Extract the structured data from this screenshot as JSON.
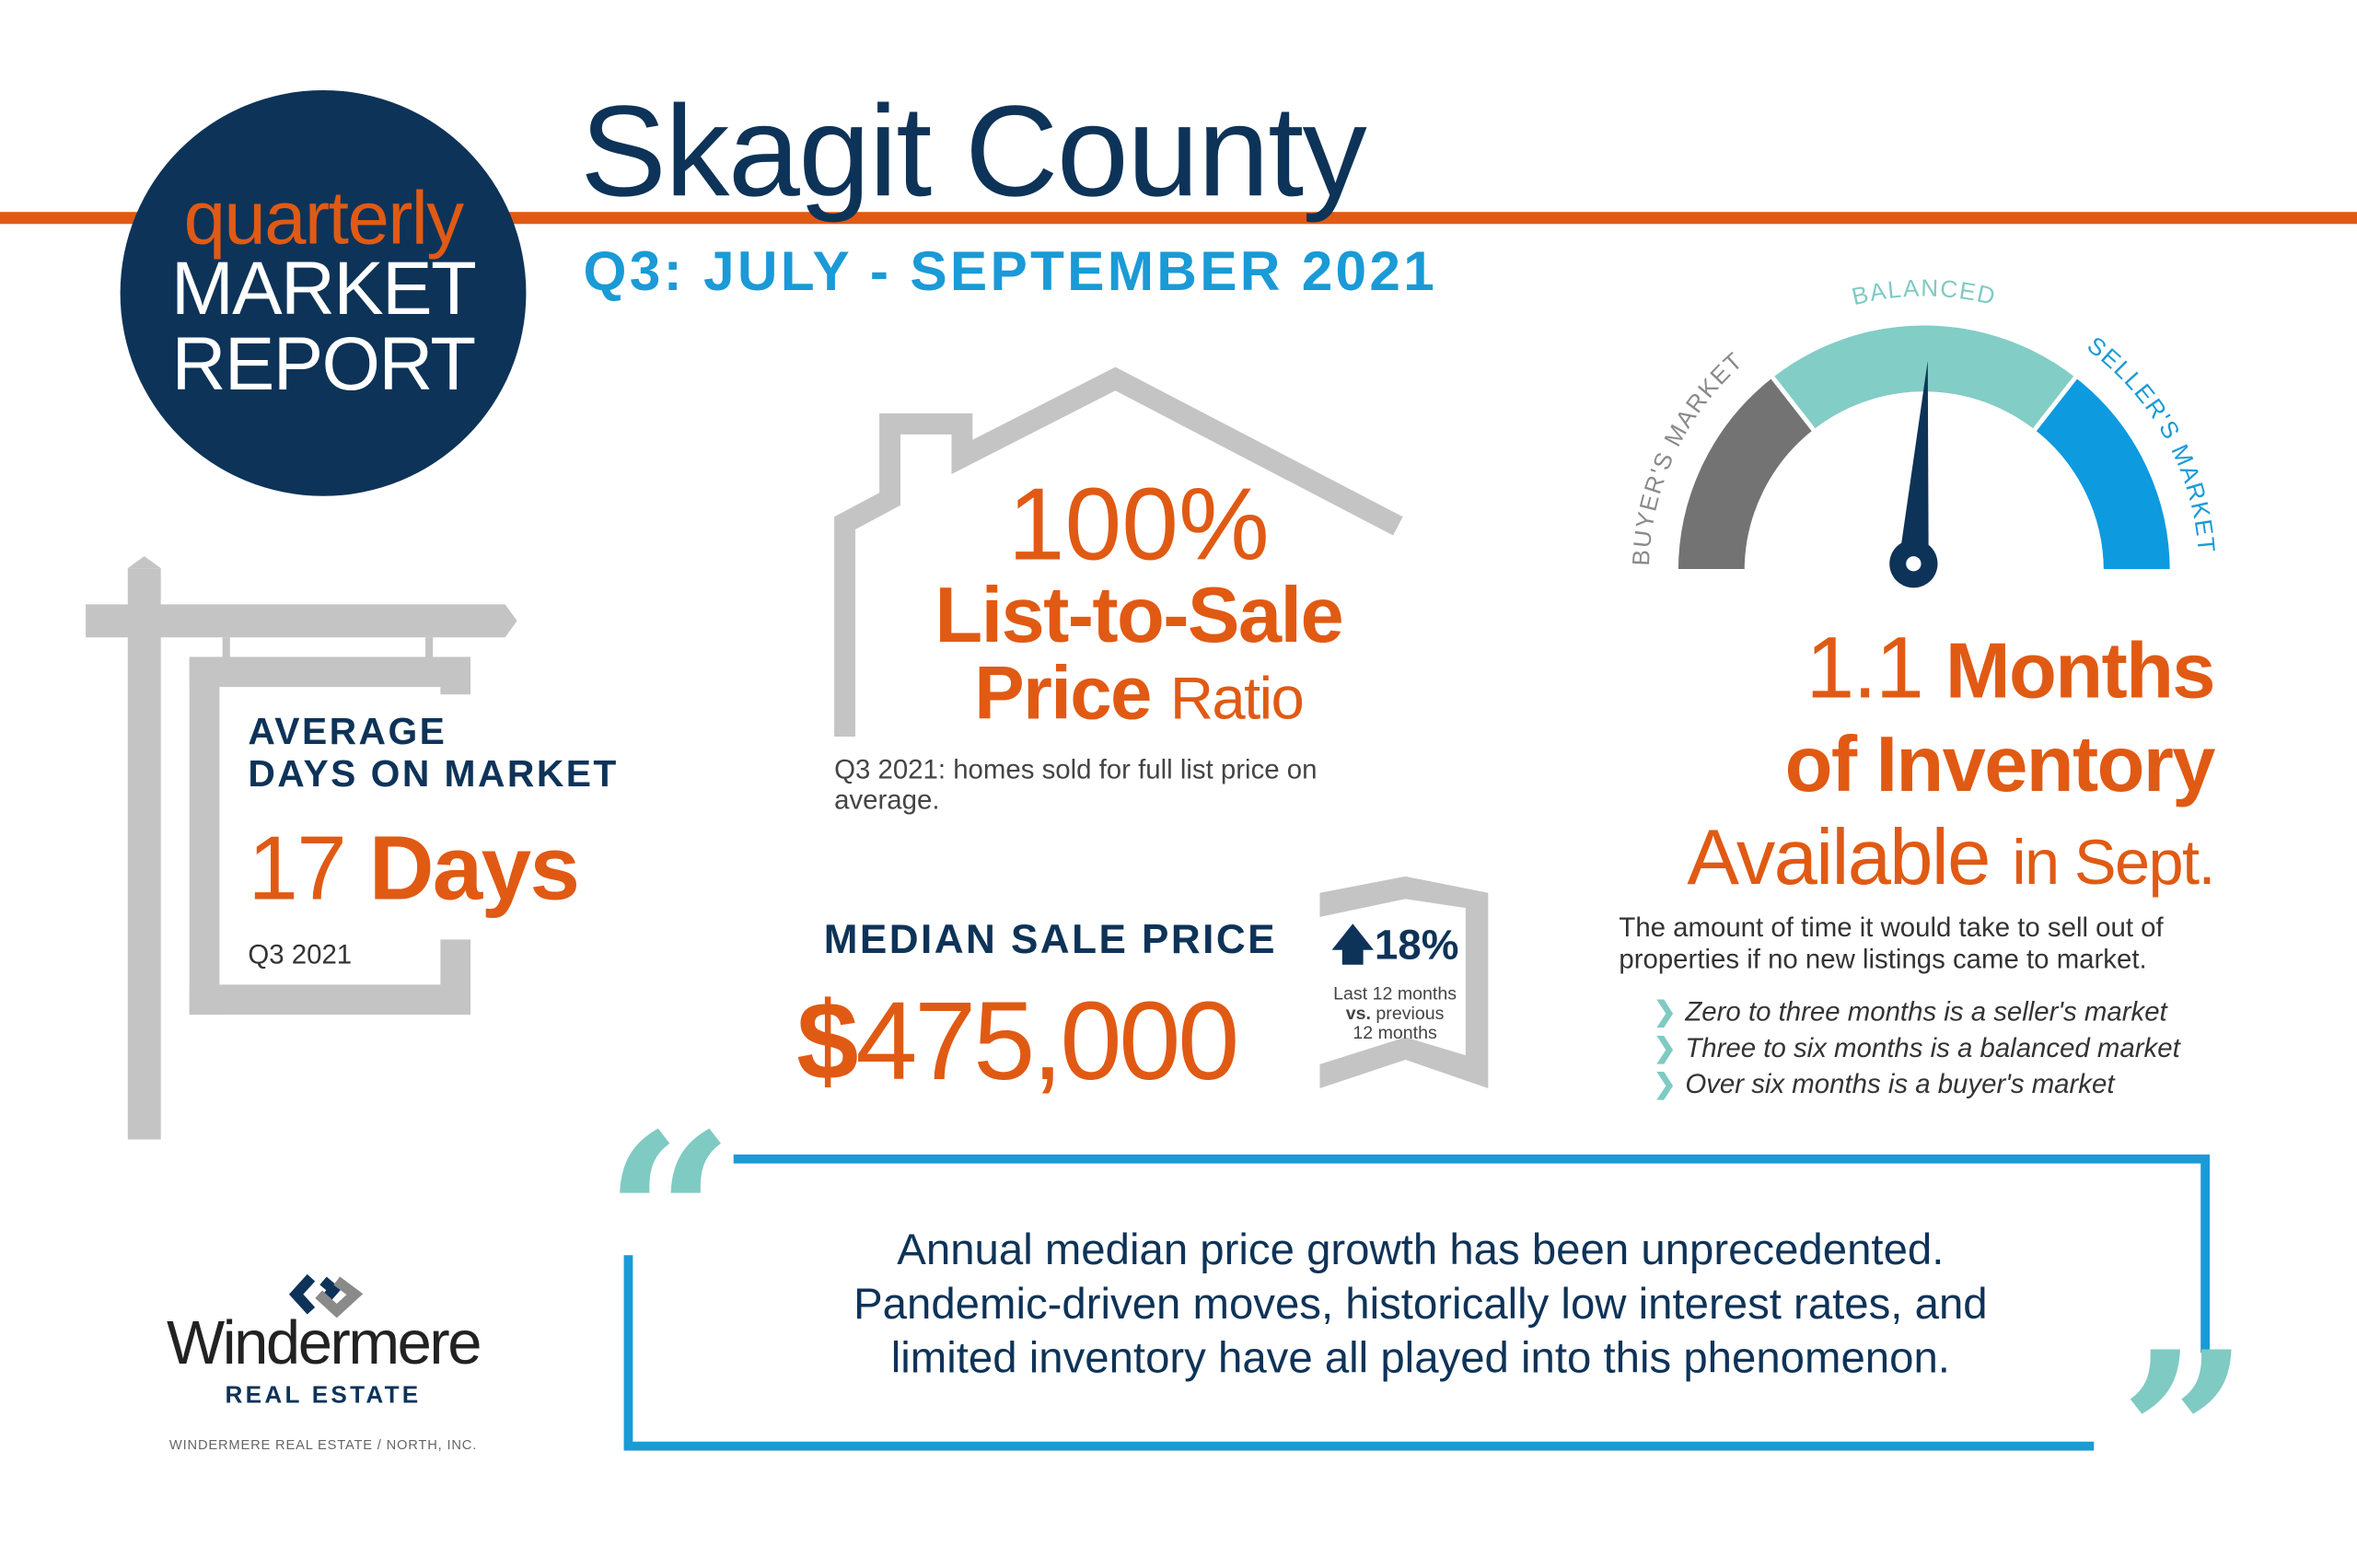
{
  "header": {
    "badge_line1": "quarterly",
    "badge_line2": "MARKET",
    "badge_line3": "REPORT",
    "title": "Skagit County",
    "subtitle": "Q3: JULY - SEPTEMBER 2021"
  },
  "days_on_market": {
    "label_line1": "AVERAGE",
    "label_line2": "DAYS ON MARKET",
    "value_num": "17",
    "value_unit": "Days",
    "period": "Q3 2021"
  },
  "list_to_sale": {
    "value": "100%",
    "label_line1": "List-to-Sale",
    "label_bold": "Price",
    "label_light": "Ratio",
    "note": "Q3 2021: homes sold for full list price on average."
  },
  "median_price": {
    "label": "MEDIAN SALE PRICE",
    "currency": "$",
    "value": "475,000",
    "change": "18%",
    "change_direction": "up",
    "change_note_line1": "Last 12 months",
    "change_note_vs": "vs.",
    "change_note_line2": "previous",
    "change_note_line3": "12 months"
  },
  "gauge": {
    "label_buyers": "BUYER'S MARKET",
    "label_balanced": "BALANCED",
    "label_sellers": "SELLER'S MARKET",
    "months_value": 1.1,
    "scale_max_months": 9,
    "colors": {
      "buyers": "#737373",
      "balanced": "#82cdc6",
      "sellers": "#0d9ade",
      "needle": "#0e3358"
    }
  },
  "inventory": {
    "value": "1.1",
    "line1_bold": "Months",
    "line2_bold": "of Inventory",
    "line3_light": "Available",
    "line3_small": "in Sept.",
    "description": "The amount of time it would take to sell out of properties if no new listings came to market.",
    "bullets": [
      "Zero to three months is a seller's market",
      "Three to six months is a balanced market",
      "Over six months is a buyer's market"
    ]
  },
  "quote": {
    "lines": [
      "Annual median price growth has been unprecedented.",
      "Pandemic-driven moves, historically low interest rates, and",
      "limited inventory have all played into this phenomenon."
    ],
    "open_mark": "“",
    "close_mark": "”"
  },
  "logo": {
    "name": "Windermere",
    "tagline": "REAL ESTATE",
    "footer": "WINDERMERE REAL ESTATE / NORTH, INC."
  },
  "colors": {
    "orange": "#e05a14",
    "navy": "#0e3358",
    "blue": "#1a9ad6",
    "teal": "#7fcac3",
    "grey": "#c4c4c4"
  }
}
